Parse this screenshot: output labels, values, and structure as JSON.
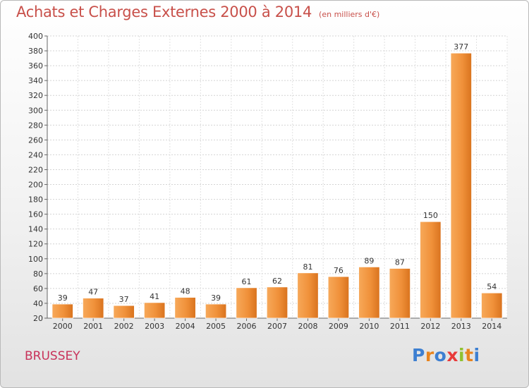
{
  "chart_data": {
    "type": "bar",
    "title": "Achats et Charges Externes 2000 à 2014",
    "subtitle": "(en milliers d'€)",
    "categories": [
      "2000",
      "2001",
      "2002",
      "2003",
      "2004",
      "2005",
      "2006",
      "2007",
      "2008",
      "2009",
      "2010",
      "2011",
      "2012",
      "2013",
      "2014"
    ],
    "values": [
      39,
      47,
      37,
      41,
      48,
      39,
      61,
      62,
      81,
      76,
      89,
      87,
      150,
      377,
      54
    ],
    "ylim": [
      20,
      400
    ],
    "yticks": [
      20,
      40,
      60,
      80,
      100,
      120,
      140,
      160,
      180,
      200,
      220,
      240,
      260,
      280,
      300,
      320,
      340,
      360,
      380,
      400
    ],
    "grid": true,
    "bar_color": "#f0913a",
    "legend": "none"
  },
  "footer": {
    "commune": "BRUSSEY",
    "logo_text": "Proxiti",
    "logo_colors": [
      "#3d7fd1",
      "#e8841e",
      "#3d7fd1",
      "#e83a3a",
      "#8fc12f",
      "#e8841e",
      "#3d7fd1"
    ]
  }
}
